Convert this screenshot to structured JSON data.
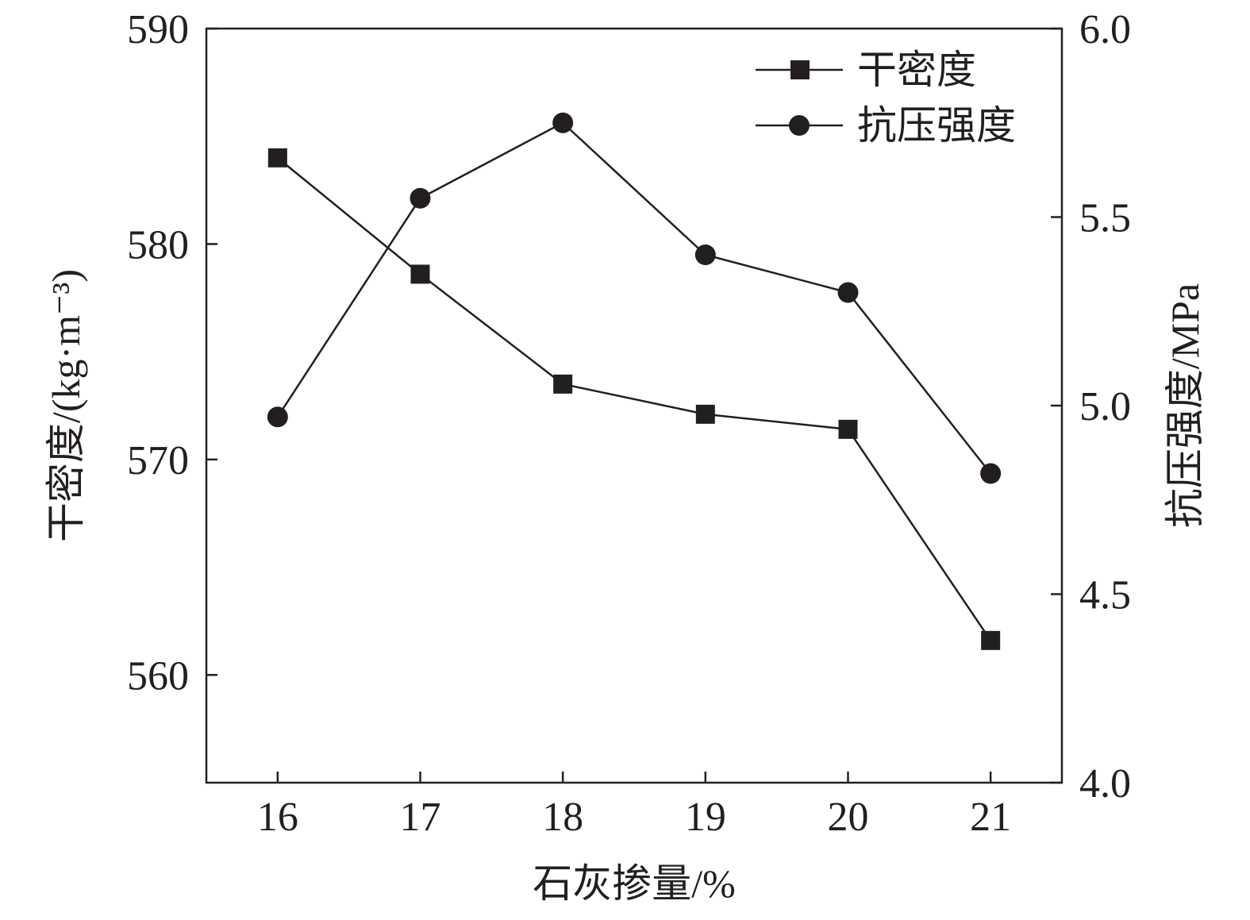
{
  "chart_data": {
    "type": "line",
    "x": [
      16,
      17,
      18,
      19,
      20,
      21
    ],
    "xlabel": "石灰掺量/%",
    "xlim": [
      15.5,
      21.5
    ],
    "xticks": [
      "16",
      "17",
      "18",
      "19",
      "20",
      "21"
    ],
    "ylabel_left": "干密度/(kg·m⁻³)",
    "ylim_left": [
      555,
      590
    ],
    "yticks_left": [
      "560",
      "570",
      "580",
      "590"
    ],
    "ylabel_right": "抗压强度/MPa",
    "ylim_right": [
      4.0,
      6.0
    ],
    "yticks_right": [
      "4.0",
      "4.5",
      "5.0",
      "5.5",
      "6.0"
    ],
    "grid": false,
    "legend_position": "top-right",
    "series": [
      {
        "name": "干密度",
        "axis": "left",
        "marker": "square",
        "color": "#231f20",
        "values": [
          584.0,
          578.6,
          573.5,
          572.1,
          571.4,
          561.6
        ]
      },
      {
        "name": "抗压强度",
        "axis": "right",
        "marker": "circle",
        "color": "#231f20",
        "values": [
          4.97,
          5.55,
          5.75,
          5.4,
          5.3,
          4.82
        ]
      }
    ]
  }
}
